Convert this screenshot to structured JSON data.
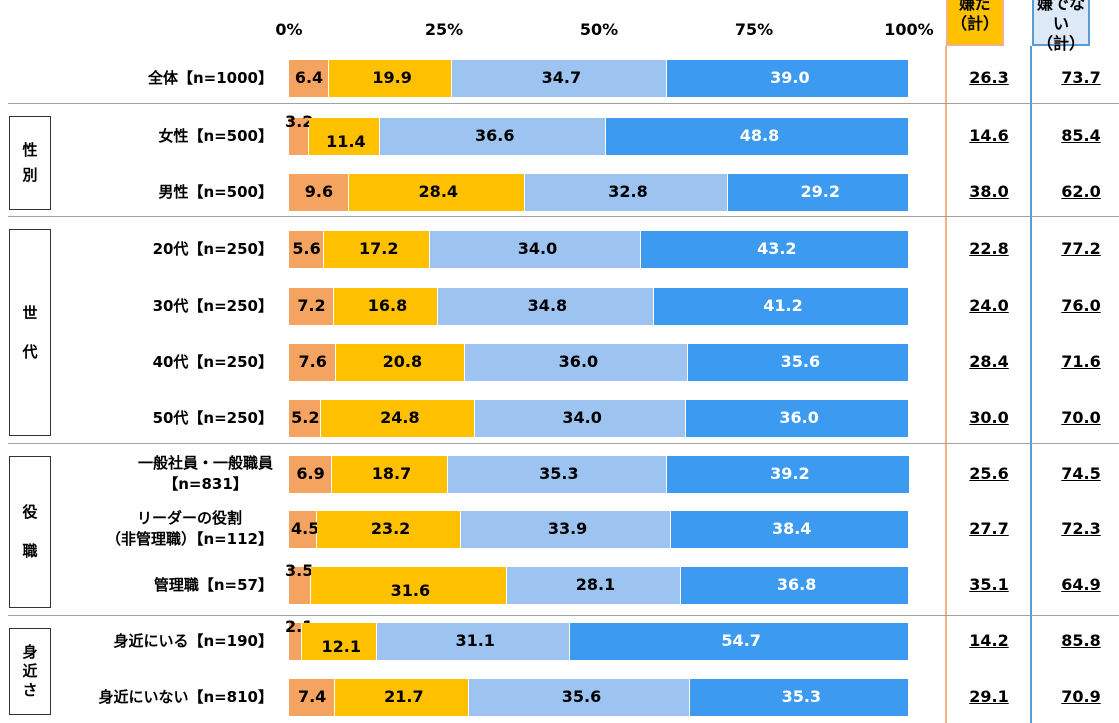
{
  "headers": {
    "a_line1": "嫌だ",
    "a_line2": "（計）",
    "b_line1": "嫌でない",
    "b_line2": "（計）"
  },
  "axis_ticks": [
    "0%",
    "25%",
    "50%",
    "75%",
    "100%"
  ],
  "colors": {
    "seg1": "#F4A460",
    "seg2": "#FFC000",
    "seg3": "#9DC3F0",
    "seg4": "#3C9BF0",
    "line_orange": "#F4B183",
    "line_blue": "#5B9BD5"
  },
  "groups": [
    {
      "lines": [
        "性",
        "別"
      ]
    },
    {
      "lines": [
        "世",
        "代"
      ]
    },
    {
      "lines": [
        "役",
        "職"
      ]
    },
    {
      "lines": [
        "身",
        "近",
        "さ"
      ]
    }
  ],
  "chart_data": {
    "type": "bar",
    "stacked": true,
    "orientation": "horizontal",
    "xlim": [
      0,
      100
    ],
    "x_ticks": [
      "0%",
      "25%",
      "50%",
      "75%",
      "100%"
    ],
    "rows": [
      {
        "label": [
          "全体【n=1000】"
        ],
        "values": [
          6.4,
          19.9,
          34.7,
          39.0
        ],
        "sum_a": "26.3",
        "sum_b": "73.7"
      },
      {
        "label": [
          "女性【n=500】"
        ],
        "values": [
          3.2,
          11.4,
          36.6,
          48.8
        ],
        "sum_a": "14.6",
        "sum_b": "85.4"
      },
      {
        "label": [
          "男性【n=500】"
        ],
        "values": [
          9.6,
          28.4,
          32.8,
          29.2
        ],
        "sum_a": "38.0",
        "sum_b": "62.0"
      },
      {
        "label": [
          "20代【n=250】"
        ],
        "values": [
          5.6,
          17.2,
          34.0,
          43.2
        ],
        "sum_a": "22.8",
        "sum_b": "77.2"
      },
      {
        "label": [
          "30代【n=250】"
        ],
        "values": [
          7.2,
          16.8,
          34.8,
          41.2
        ],
        "sum_a": "24.0",
        "sum_b": "76.0"
      },
      {
        "label": [
          "40代【n=250】"
        ],
        "values": [
          7.6,
          20.8,
          36.0,
          35.6
        ],
        "sum_a": "28.4",
        "sum_b": "71.6"
      },
      {
        "label": [
          "50代【n=250】"
        ],
        "values": [
          5.2,
          24.8,
          34.0,
          36.0
        ],
        "sum_a": "30.0",
        "sum_b": "70.0"
      },
      {
        "label": [
          "一般社員・一般職員",
          "【n=831】"
        ],
        "values": [
          6.9,
          18.7,
          35.3,
          39.2
        ],
        "sum_a": "25.6",
        "sum_b": "74.5"
      },
      {
        "label": [
          "リーダーの役割",
          "（非管理職）【n=112】"
        ],
        "values": [
          4.5,
          23.2,
          33.9,
          38.4
        ],
        "sum_a": "27.7",
        "sum_b": "72.3"
      },
      {
        "label": [
          "管理職【n=57】"
        ],
        "values": [
          3.5,
          31.6,
          28.1,
          36.8
        ],
        "sum_a": "35.1",
        "sum_b": "64.9"
      },
      {
        "label": [
          "身近にいる【n=190】"
        ],
        "values": [
          2.1,
          12.1,
          31.1,
          54.7
        ],
        "sum_a": "14.2",
        "sum_b": "85.8"
      },
      {
        "label": [
          "身近にいない【n=810】"
        ],
        "values": [
          7.4,
          21.7,
          35.6,
          35.3
        ],
        "sum_a": "29.1",
        "sum_b": "70.9"
      }
    ]
  }
}
